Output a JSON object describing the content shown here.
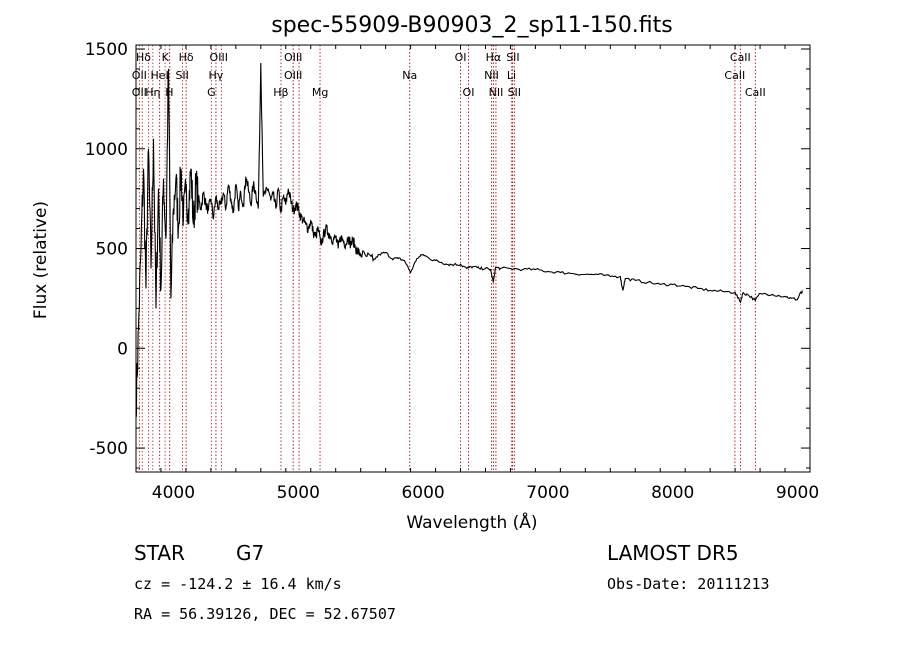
{
  "chart_data": {
    "type": "line",
    "title": "spec-55909-B90903_2_sp11-150.fits",
    "xlabel": "Wavelength (Å)",
    "ylabel": "Flux (relative)",
    "xlim": [
      3700,
      9100
    ],
    "ylim": [
      -620,
      1520
    ],
    "xticks": [
      4000,
      5000,
      6000,
      7000,
      8000,
      9000
    ],
    "yticks": [
      -500,
      0,
      500,
      1000,
      1500
    ],
    "grid": false,
    "series": [
      {
        "x": [
          3700,
          3720,
          3740,
          3760,
          3780,
          3800,
          3820,
          3840,
          3860,
          3880,
          3900,
          3920,
          3940,
          3960,
          3980,
          4000,
          4020,
          4040,
          4060,
          4080,
          4100,
          4120,
          4140,
          4160,
          4180,
          4200,
          4220,
          4240,
          4260,
          4280,
          4300,
          4320,
          4340,
          4360,
          4380,
          4400,
          4420,
          4440,
          4460,
          4480,
          4500,
          4520,
          4540,
          4560,
          4580,
          4600,
          4620,
          4640,
          4660,
          4680,
          4700,
          4720,
          4740,
          4760,
          4780,
          4800,
          4820,
          4840,
          4860,
          4880,
          4900,
          4920,
          4940,
          4960,
          4980,
          5000,
          5020,
          5040,
          5060,
          5080,
          5100,
          5120,
          5140,
          5160,
          5180,
          5200,
          5220,
          5240,
          5260,
          5280,
          5300,
          5320,
          5340,
          5360,
          5380,
          5400,
          5420,
          5440,
          5460,
          5480,
          5500,
          5550,
          5600,
          5650,
          5700,
          5750,
          5800,
          5850,
          5900,
          5950,
          6000,
          6050,
          6100,
          6150,
          6200,
          6250,
          6300,
          6350,
          6400,
          6450,
          6500,
          6540,
          6563,
          6580,
          6620,
          6700,
          6800,
          6900,
          7000,
          7100,
          7200,
          7300,
          7400,
          7500,
          7580,
          7600,
          7620,
          7700,
          7800,
          7900,
          8000,
          8100,
          8200,
          8300,
          8400,
          8500,
          8542,
          8560,
          8600,
          8662,
          8700,
          8800,
          8900,
          8950,
          9000,
          9020,
          9040
        ],
        "y": [
          -300,
          100,
          500,
          900,
          300,
          1000,
          400,
          1050,
          200,
          800,
          300,
          850,
          550,
          1400,
          250,
          700,
          850,
          600,
          900,
          650,
          780,
          700,
          900,
          620,
          820,
          750,
          700,
          780,
          720,
          690,
          750,
          650,
          760,
          700,
          720,
          780,
          700,
          820,
          750,
          680,
          820,
          700,
          780,
          720,
          860,
          800,
          720,
          820,
          780,
          700,
          1430,
          760,
          780,
          800,
          740,
          770,
          700,
          800,
          680,
          760,
          720,
          800,
          740,
          690,
          720,
          700,
          660,
          640,
          620,
          600,
          640,
          580,
          560,
          600,
          520,
          560,
          600,
          580,
          560,
          540,
          560,
          500,
          560,
          540,
          520,
          560,
          520,
          540,
          500,
          480,
          470,
          460,
          440,
          470,
          480,
          450,
          450,
          440,
          380,
          450,
          470,
          450,
          440,
          430,
          420,
          420,
          420,
          400,
          410,
          400,
          400,
          395,
          330,
          405,
          400,
          400,
          395,
          395,
          385,
          380,
          375,
          370,
          370,
          360,
          360,
          290,
          350,
          340,
          330,
          320,
          320,
          310,
          300,
          290,
          285,
          280,
          230,
          275,
          270,
          240,
          275,
          270,
          260,
          250,
          245,
          275,
          280
        ]
      }
    ],
    "line_groups": [
      {
        "x": [
          3750,
          3835,
          3890,
          3970,
          4102,
          4340,
          4384,
          4861,
          4960,
          5007,
          5175,
          5893,
          6300,
          6364,
          6548,
          6563,
          6584,
          6716,
          6731,
          8498,
          8542,
          8662
        ]
      },
      {
        "x": [
          3727,
          3800,
          3889,
          3933,
          3970,
          4072,
          4102,
          4304,
          4341,
          4959,
          4861,
          5007,
          5175,
          5893,
          6300,
          6363,
          6548,
          6563,
          6583,
          6707,
          6717,
          6731,
          8498,
          8542,
          8662
        ]
      }
    ],
    "line_labels": [
      {
        "text": "Hδ",
        "x": 3760,
        "row": 0
      },
      {
        "text": "K",
        "x": 3934,
        "row": 0
      },
      {
        "text": "Hδ",
        "x": 4102,
        "row": 0
      },
      {
        "text": "OIII",
        "x": 4363,
        "row": 0
      },
      {
        "text": "OIII",
        "x": 4959,
        "row": 0
      },
      {
        "text": "OI",
        "x": 6300,
        "row": 0
      },
      {
        "text": "Hα",
        "x": 6563,
        "row": 0
      },
      {
        "text": "SII",
        "x": 6720,
        "row": 0
      },
      {
        "text": "CaII",
        "x": 8542,
        "row": 0
      },
      {
        "text": "OII",
        "x": 3727,
        "row": 1
      },
      {
        "text": "HeI",
        "x": 3889,
        "row": 1
      },
      {
        "text": "SII",
        "x": 4070,
        "row": 1
      },
      {
        "text": "Hγ",
        "x": 4340,
        "row": 1
      },
      {
        "text": "OIII",
        "x": 4959,
        "row": 1
      },
      {
        "text": "Na",
        "x": 5893,
        "row": 1
      },
      {
        "text": "NII",
        "x": 6548,
        "row": 1
      },
      {
        "text": "Li",
        "x": 6708,
        "row": 1
      },
      {
        "text": "CaII",
        "x": 8498,
        "row": 1
      },
      {
        "text": "OII",
        "x": 3727,
        "row": 2
      },
      {
        "text": "Hη",
        "x": 3835,
        "row": 2
      },
      {
        "text": "H",
        "x": 3968,
        "row": 2
      },
      {
        "text": "G",
        "x": 4304,
        "row": 2
      },
      {
        "text": "Hβ",
        "x": 4861,
        "row": 2
      },
      {
        "text": "Mg",
        "x": 5175,
        "row": 2
      },
      {
        "text": "OI",
        "x": 6364,
        "row": 2
      },
      {
        "text": "NII",
        "x": 6584,
        "row": 2
      },
      {
        "text": "SII",
        "x": 6731,
        "row": 2
      },
      {
        "text": "CaII",
        "x": 8662,
        "row": 2
      }
    ]
  },
  "info": {
    "object_class": "STAR",
    "subclass": "G7",
    "survey": "LAMOST DR5",
    "cz": "cz = -124.2 ± 16.4 km/s",
    "obs_date": "Obs-Date: 20111213",
    "coords": "RA =  56.39126, DEC =  52.67507"
  },
  "colors": {
    "spectrum": "#000000",
    "line_markers": "#b22222"
  }
}
